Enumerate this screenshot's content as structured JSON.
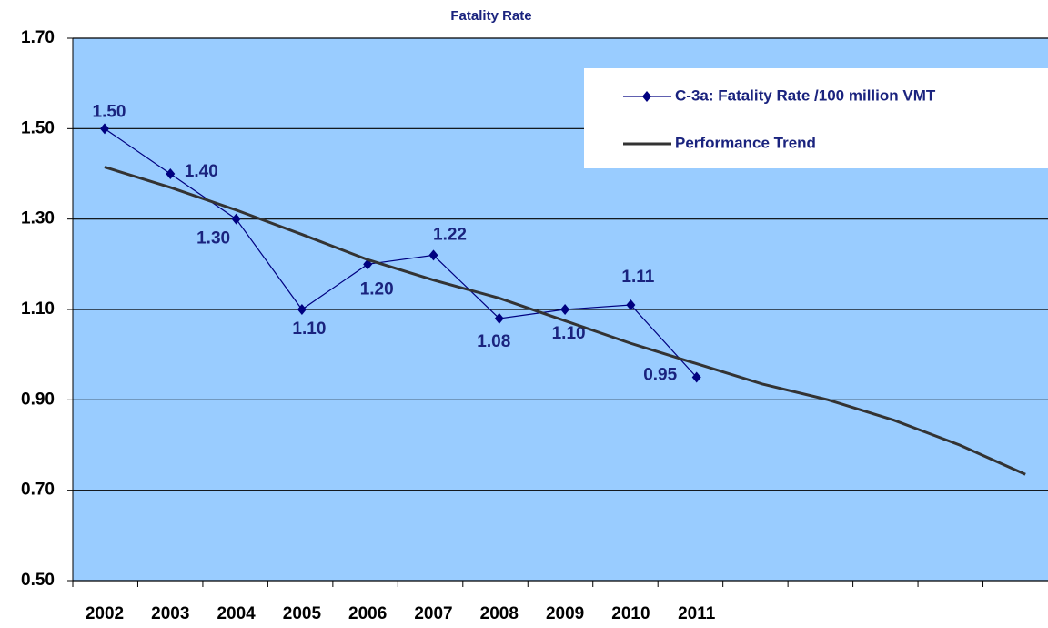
{
  "chart_data": {
    "type": "line",
    "title": "Fatality Rate",
    "categories": [
      "2002",
      "2003",
      "2004",
      "2005",
      "2006",
      "2007",
      "2008",
      "2009",
      "2010",
      "2011",
      null,
      null,
      null,
      null,
      null
    ],
    "series": [
      {
        "name": "C-3a: Fatality Rate /100 million VMT",
        "color": "#000080",
        "values": [
          1.5,
          1.4,
          1.3,
          1.1,
          1.2,
          1.22,
          1.08,
          1.1,
          1.11,
          0.95,
          null,
          null,
          null,
          null,
          null
        ],
        "value_labels": [
          "1.50",
          "1.40",
          "1.30",
          "1.10",
          "1.20",
          "1.22",
          "1.08",
          "1.10",
          "1.11",
          "0.95",
          null,
          null,
          null,
          null,
          null
        ]
      },
      {
        "name": "Performance Trend",
        "color": "#333333",
        "values": [
          1.415,
          1.37,
          1.32,
          1.266,
          1.21,
          1.165,
          1.125,
          1.075,
          1.025,
          0.98,
          0.935,
          0.9,
          0.855,
          0.8,
          0.735
        ]
      }
    ],
    "ylim": [
      0.5,
      1.7
    ],
    "yticks": [
      {
        "value": 0.5,
        "label": "0.50"
      },
      {
        "value": 0.7,
        "label": "0.70"
      },
      {
        "value": 0.9,
        "label": "0.90"
      },
      {
        "value": 1.1,
        "label": "1.10"
      },
      {
        "value": 1.3,
        "label": "1.30"
      },
      {
        "value": 1.5,
        "label": "1.50"
      },
      {
        "value": 1.7,
        "label": "1.70"
      }
    ],
    "grid": true,
    "legend": "upper right",
    "background": "#99ccff"
  }
}
